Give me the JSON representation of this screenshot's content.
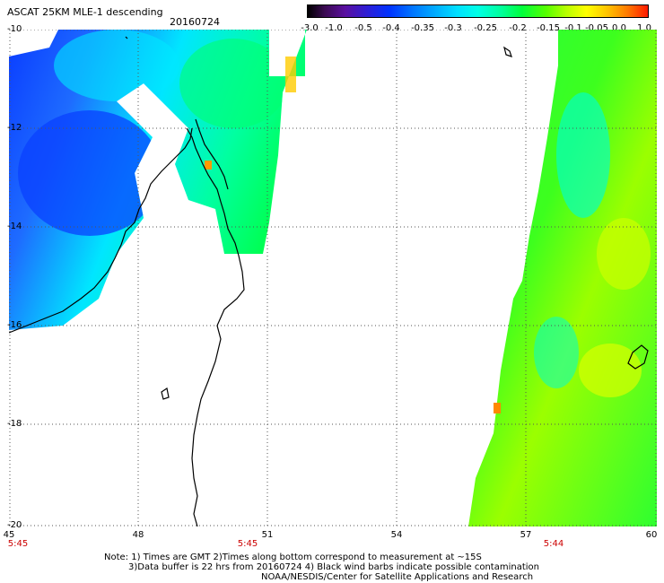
{
  "header": {
    "title": "ASCAT 25KM MLE-1 descending",
    "date": "20160724"
  },
  "colorbar": {
    "labels": [
      "-3.0",
      "-1.0",
      "-0.5",
      "-0.4",
      "-0.35",
      "-0.3",
      "-0.25",
      "-0.2",
      "-0.15",
      "-0.1",
      "-0.05",
      "0.0",
      "1.0"
    ]
  },
  "axes": {
    "lat_labels": [
      "-10",
      "-12",
      "-14",
      "-16",
      "-18",
      "-20"
    ],
    "lon_labels": [
      "45",
      "48",
      "51",
      "54",
      "57",
      "60"
    ]
  },
  "times": {
    "t1": "5:45",
    "t2": "5:45",
    "t3": "5:44"
  },
  "footer": {
    "line1": "Note: 1) Times are GMT 2)Times along bottom correspond to measurement at ~15S",
    "line2": "3)Data buffer is 22 hrs from 20160724 4) Black wind barbs indicate possible contamination",
    "line3": "NOAA/NESDIS/Center for Satellite Applications and Research"
  },
  "colors": {
    "coast": "#000000",
    "grid": "#555555",
    "time_label": "#cc0000"
  }
}
